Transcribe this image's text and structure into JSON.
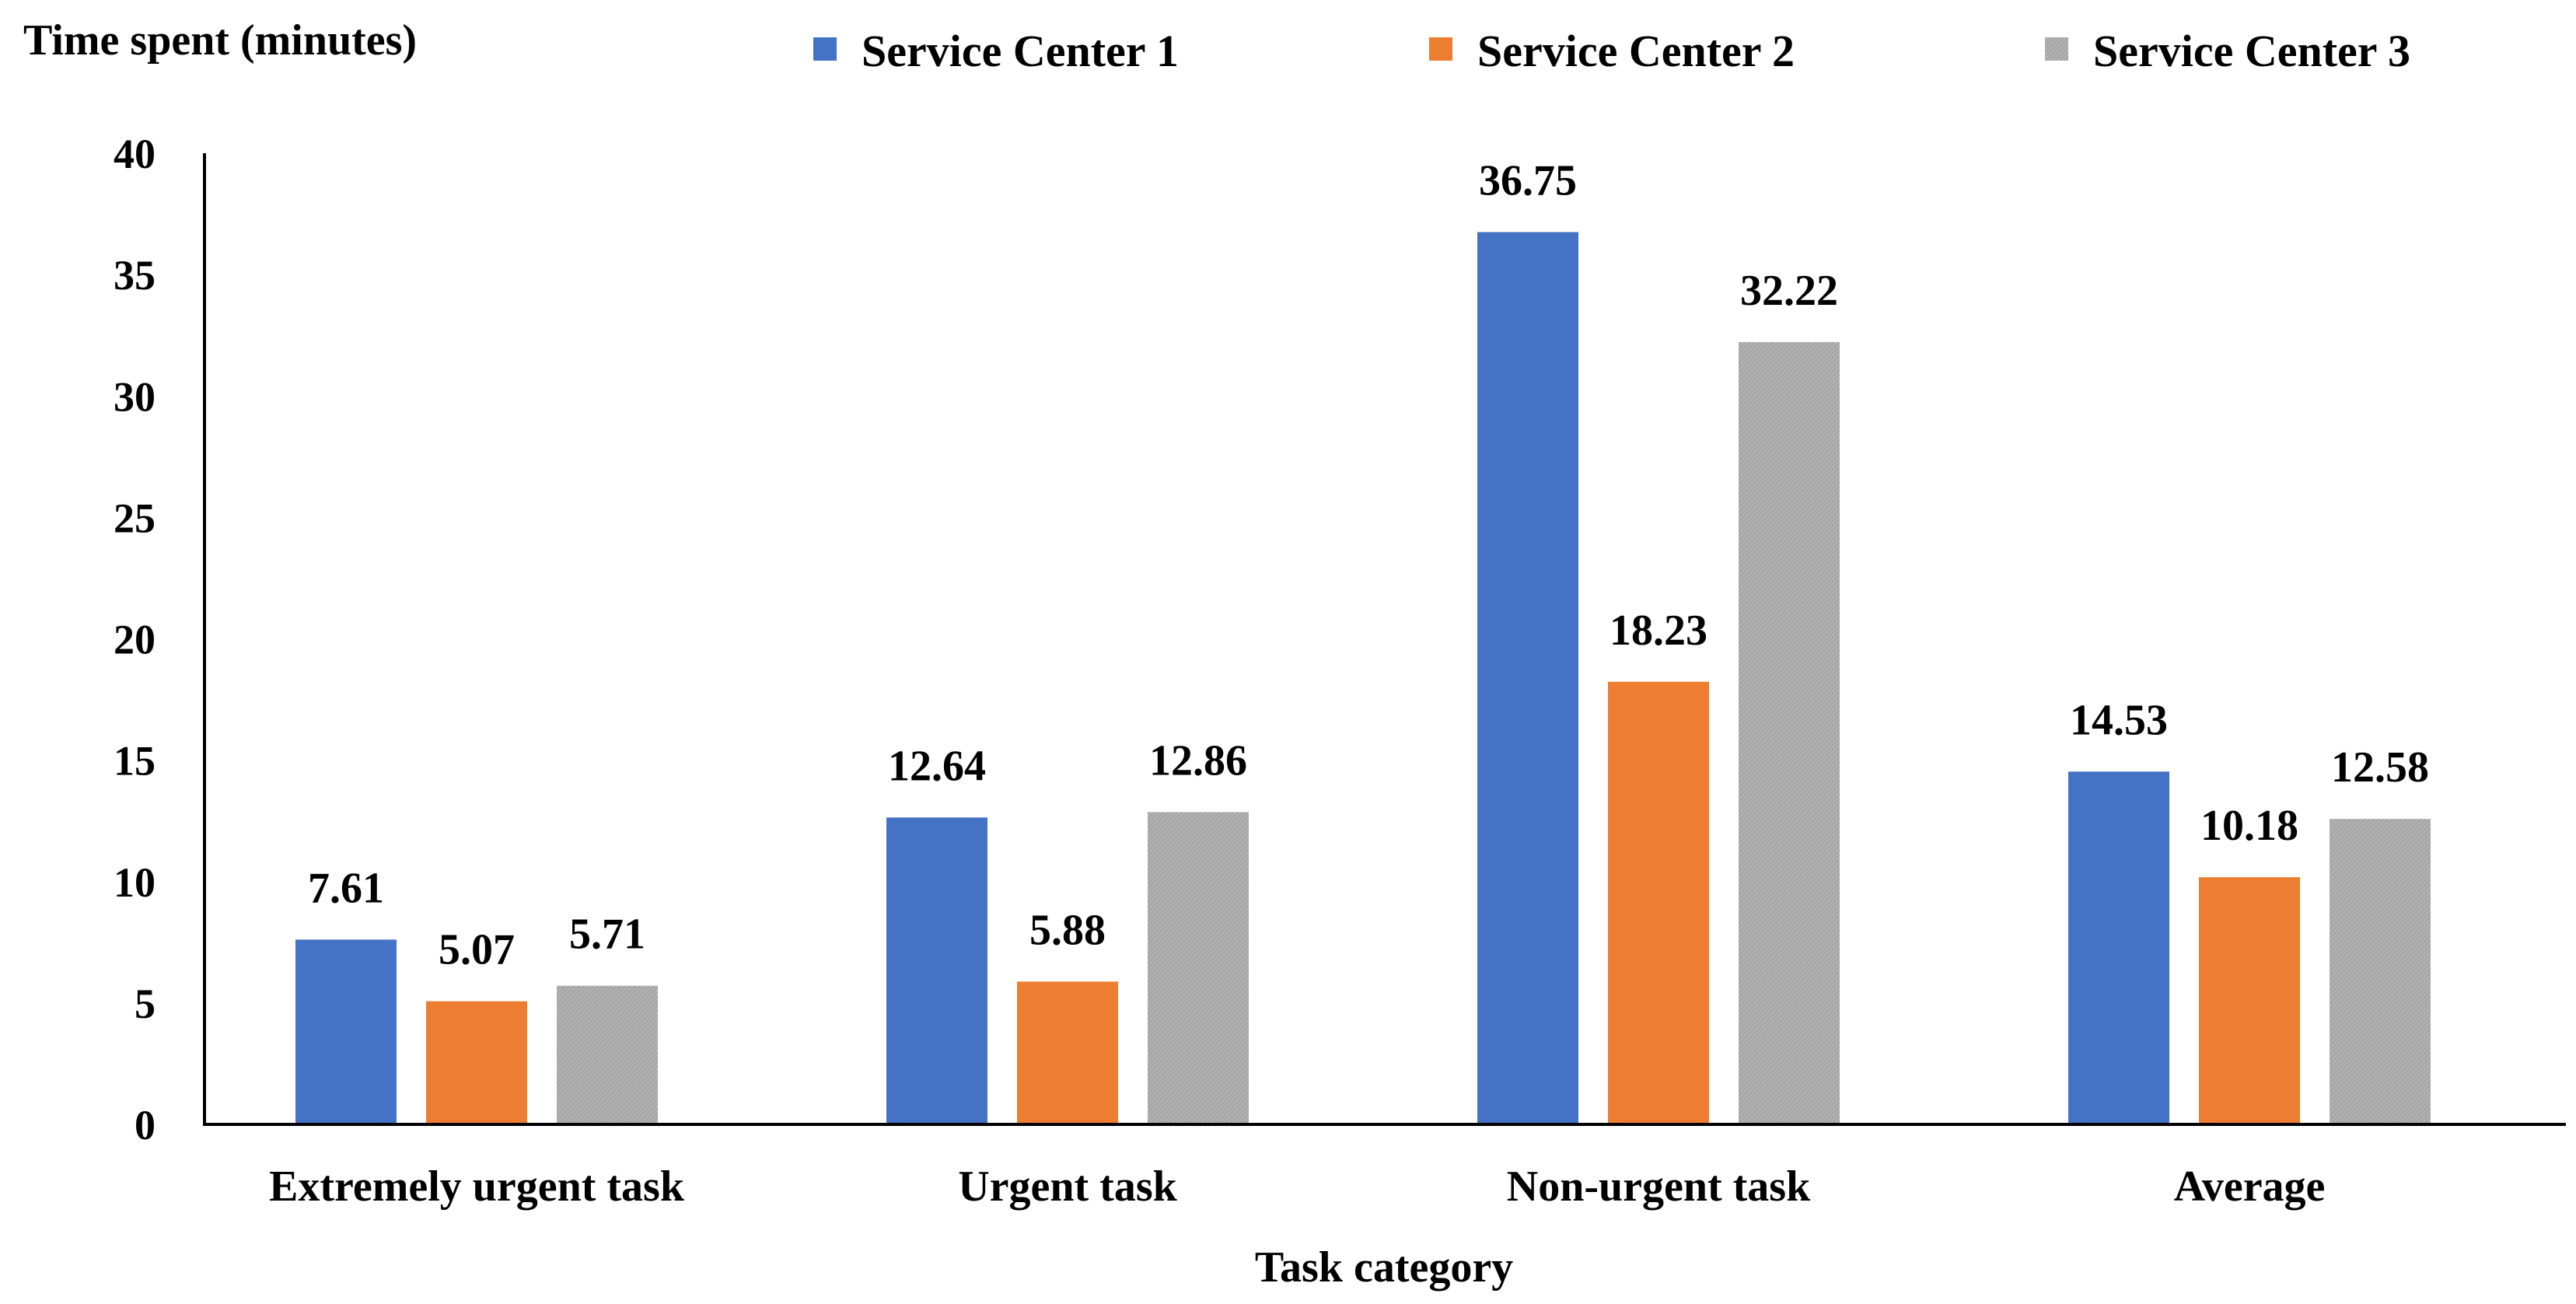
{
  "chart_data": {
    "type": "bar",
    "title": "",
    "ylabel": "Time spent (minutes)",
    "xlabel": "Task category",
    "ylim": [
      0,
      40
    ],
    "yticks": [
      0,
      5,
      10,
      15,
      20,
      25,
      30,
      35,
      40
    ],
    "grid": false,
    "legend_position": "top",
    "categories": [
      "Extremely urgent task",
      "Urgent task",
      "Non-urgent task",
      "Average"
    ],
    "series": [
      {
        "name": "Service Center 1",
        "color": "#4472C4",
        "values": [
          7.61,
          12.64,
          36.75,
          14.53
        ],
        "labels": [
          "7.61",
          "12.64",
          "36.75",
          "14.53"
        ]
      },
      {
        "name": "Service Center 2",
        "color": "#ED7D31",
        "values": [
          5.07,
          5.88,
          18.23,
          10.18
        ],
        "labels": [
          "5.07",
          "5.88",
          "18.23",
          "10.18"
        ]
      },
      {
        "name": "Service Center 3",
        "color": "#A5A5A5",
        "values": [
          5.71,
          12.86,
          32.22,
          12.58
        ],
        "labels": [
          "5.71",
          "12.86",
          "32.22",
          "12.58"
        ]
      }
    ]
  }
}
